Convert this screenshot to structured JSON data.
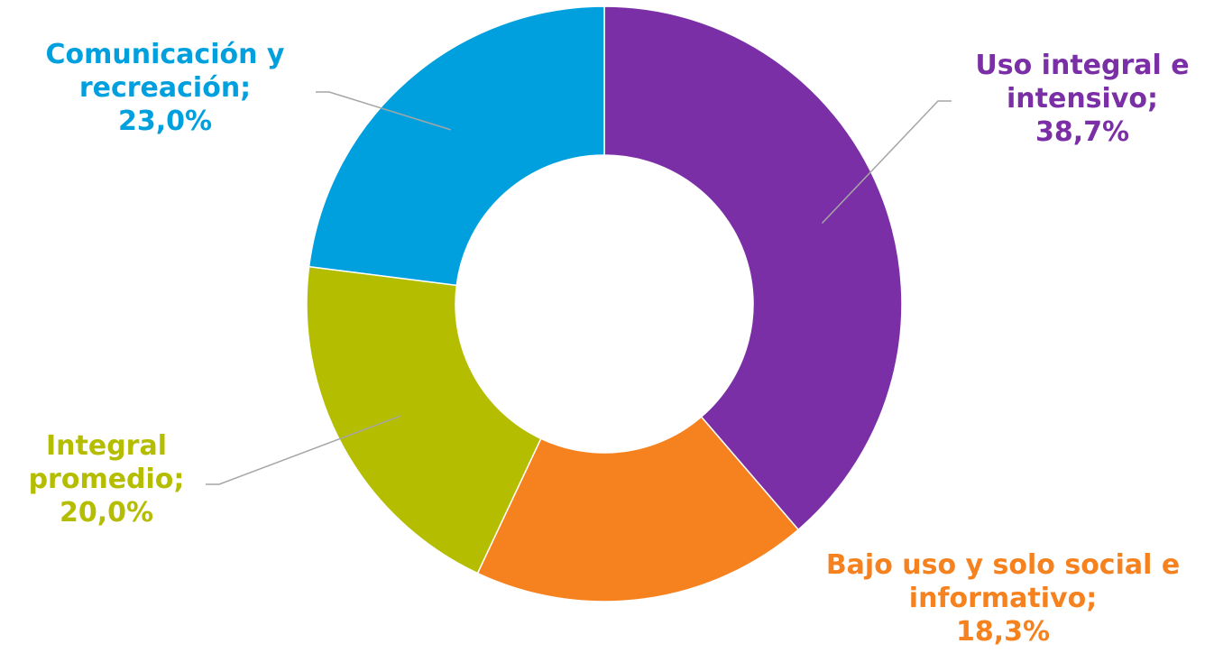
{
  "chart_data": {
    "type": "pie",
    "donut": true,
    "title": "",
    "series": [
      {
        "values": [
          {
            "label": "Uso integral e intensivo",
            "value": 38.7,
            "value_text": "38,7%",
            "color": "#7B2FA6",
            "label_lines": [
              "Uso integral e",
              "intensivo;",
              "38,7%"
            ]
          },
          {
            "label": "Bajo uso y solo social e informativo",
            "value": 18.3,
            "value_text": "18,3%",
            "color": "#F5821F",
            "label_lines": [
              "Bajo uso y solo social e",
              "informativo;",
              "18,3%"
            ]
          },
          {
            "label": "Integral promedio",
            "value": 20.0,
            "value_text": "20,0%",
            "color": "#B5BD00",
            "label_lines": [
              "Integral",
              "promedio;",
              "20,0%"
            ]
          },
          {
            "label": "Comunicación y recreación",
            "value": 23.0,
            "value_text": "23,0%",
            "color": "#00A0DF",
            "label_lines": [
              "Comunicación y",
              "recreación;",
              "23,0%"
            ]
          }
        ]
      }
    ],
    "start_angle": "12 o'clock",
    "direction": "clockwise",
    "legend": "none",
    "leader_line_color": "#A6A6A6"
  }
}
